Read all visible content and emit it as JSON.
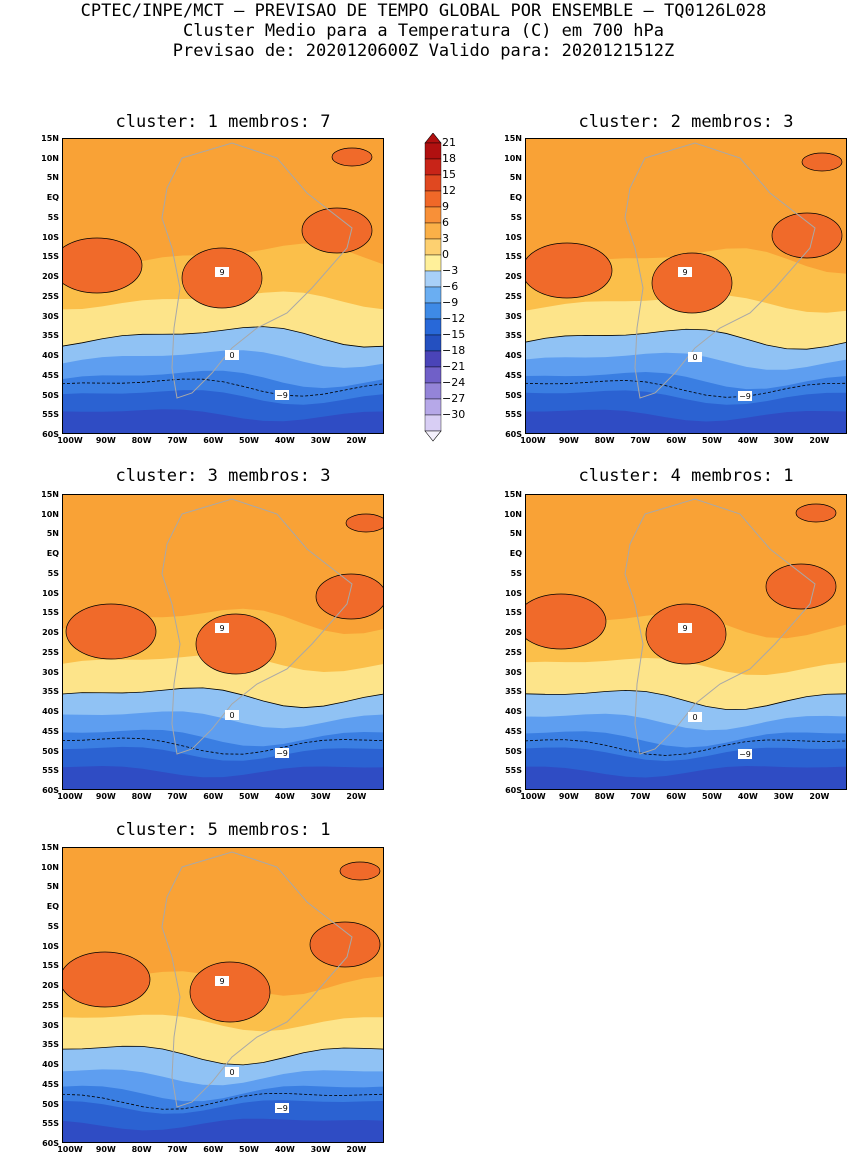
{
  "header": {
    "line1": "CPTEC/INPE/MCT – PREVISAO DE TEMPO GLOBAL POR ENSEMBLE – TQ0126L028",
    "line2": "Cluster Medio para a Temperatura (C) em 700 hPa",
    "line3": "Previsao de: 2020120600Z    Valido para: 2020121512Z"
  },
  "map_axes": {
    "lat_labels": [
      "15N",
      "10N",
      "5N",
      "EQ",
      "5S",
      "10S",
      "15S",
      "20S",
      "25S",
      "30S",
      "35S",
      "40S",
      "45S",
      "50S",
      "55S",
      "60S"
    ],
    "lon_labels": [
      "100W",
      "90W",
      "80W",
      "70W",
      "60W",
      "50W",
      "40W",
      "30W",
      "20W"
    ]
  },
  "colorbar": {
    "labels": [
      "21",
      "18",
      "15",
      "12",
      "9",
      "6",
      "3",
      "0",
      "−3",
      "−6",
      "−9",
      "−12",
      "−15",
      "−18",
      "−21",
      "−24",
      "−27",
      "−30"
    ],
    "colors": [
      "#b01010",
      "#c82418",
      "#e04820",
      "#f06828",
      "#f89038",
      "#fab048",
      "#fdd070",
      "#fff09a",
      "#a8d0f8",
      "#6aaef2",
      "#3e8ae6",
      "#2868d8",
      "#2450c0",
      "#4a44b8",
      "#7060c8",
      "#9484d8",
      "#b6a8e8",
      "#d8cef4"
    ]
  },
  "panels": [
    {
      "title": "cluster: 1   membros: 7"
    },
    {
      "title": "cluster: 2   membros: 3"
    },
    {
      "title": "cluster: 3   membros: 3"
    },
    {
      "title": "cluster: 4   membros: 1"
    },
    {
      "title": "cluster: 5   membros: 1"
    }
  ],
  "contour_labels": {
    "warm": "9",
    "zero": "0",
    "cold": "−9"
  },
  "colors": {
    "c9": "#f06a2a",
    "c6": "#f9a236",
    "c3": "#fbbf4a",
    "c0": "#fde48a",
    "cm3": "#90c2f4",
    "cm6": "#5e9ef0",
    "cm9": "#3a7ee2",
    "cm12": "#2b62d2",
    "cm15": "#2f4cc4",
    "cm18": "#5a4ac0",
    "land": "#a8a8a8"
  }
}
